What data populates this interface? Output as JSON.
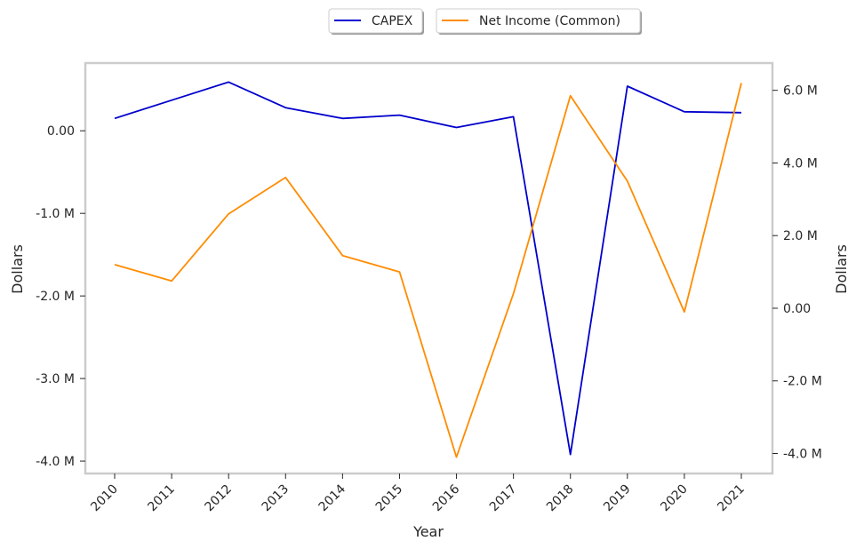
{
  "chart_data": {
    "type": "line",
    "xlabel": "Year",
    "ylabel_left": "Dollars",
    "ylabel_right": "Dollars",
    "categories": [
      "2010",
      "2011",
      "2012",
      "2013",
      "2014",
      "2015",
      "2016",
      "2017",
      "2018",
      "2019",
      "2020",
      "2021"
    ],
    "left_axis": {
      "ylim": [
        -4.15,
        0.82
      ],
      "ticks": [
        0,
        -1,
        -2,
        -3,
        -4
      ],
      "tick_labels": [
        "0.00",
        "-1.0 M",
        "-2.0 M",
        "-3.0 M",
        "-4.0 M"
      ]
    },
    "right_axis": {
      "ylim": [
        -4.55,
        6.75
      ],
      "ticks": [
        6,
        4,
        2,
        0,
        -2,
        -4
      ],
      "tick_labels": [
        "6.0 M",
        "4.0 M",
        "2.0 M",
        "0.00",
        "-2.0 M",
        "-4.0 M"
      ]
    },
    "series": [
      {
        "name": "CAPEX",
        "axis": "left",
        "color": "#0000cc",
        "values": [
          0.15,
          0.37,
          0.59,
          0.28,
          0.15,
          0.19,
          0.04,
          0.17,
          -3.92,
          0.54,
          0.23,
          0.22
        ]
      },
      {
        "name": "Net Income (Common)",
        "axis": "right",
        "color": "#ff8c00",
        "values": [
          1.2,
          0.75,
          2.6,
          3.6,
          1.45,
          1.0,
          -4.1,
          0.4,
          5.85,
          3.5,
          -0.1,
          6.2
        ]
      }
    ],
    "grid": false,
    "legend_position": "top-center"
  },
  "colors": {
    "frame": "#cccccc",
    "text": "#262626",
    "capex": "#0000cc",
    "net_income": "#ff8c00"
  }
}
